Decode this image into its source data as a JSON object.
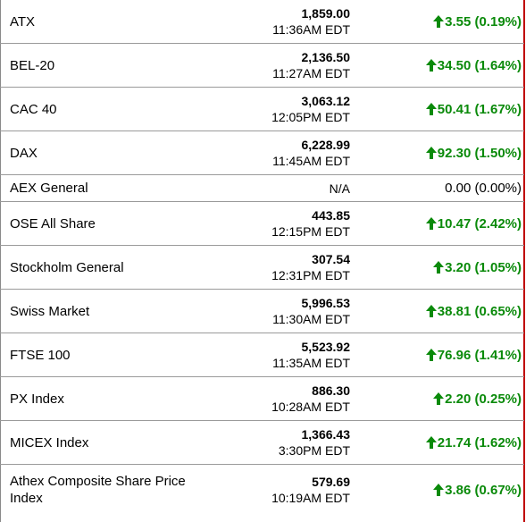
{
  "rows": [
    {
      "name": "ATX",
      "price": "1,859.00",
      "time": "11:36AM EDT",
      "change": "3.55 (0.19%)",
      "direction": "up"
    },
    {
      "name": "BEL-20",
      "price": "2,136.50",
      "time": "11:27AM EDT",
      "change": "34.50 (1.64%)",
      "direction": "up"
    },
    {
      "name": "CAC 40",
      "price": "3,063.12",
      "time": "12:05PM EDT",
      "change": "50.41 (1.67%)",
      "direction": "up"
    },
    {
      "name": "DAX",
      "price": "6,228.99",
      "time": "11:45AM EDT",
      "change": "92.30 (1.50%)",
      "direction": "up"
    },
    {
      "name": "AEX General",
      "price": "N/A",
      "time": "",
      "change": "0.00 (0.00%)",
      "direction": "flat"
    },
    {
      "name": "OSE All Share",
      "price": "443.85",
      "time": "12:15PM EDT",
      "change": "10.47 (2.42%)",
      "direction": "up"
    },
    {
      "name": "Stockholm General",
      "price": "307.54",
      "time": "12:31PM EDT",
      "change": "3.20 (1.05%)",
      "direction": "up"
    },
    {
      "name": "Swiss Market",
      "price": "5,996.53",
      "time": "11:30AM EDT",
      "change": "38.81 (0.65%)",
      "direction": "up"
    },
    {
      "name": "FTSE 100",
      "price": "5,523.92",
      "time": "11:35AM EDT",
      "change": "76.96 (1.41%)",
      "direction": "up"
    },
    {
      "name": "PX Index",
      "price": "886.30",
      "time": "10:28AM EDT",
      "change": "2.20 (0.25%)",
      "direction": "up"
    },
    {
      "name": "MICEX Index",
      "price": "1,366.43",
      "time": "3:30PM EDT",
      "change": "21.74 (1.62%)",
      "direction": "up"
    },
    {
      "name": "Athex Composite Share Price Index",
      "price": "579.69",
      "time": "10:19AM EDT",
      "change": "3.86 (0.67%)",
      "direction": "up"
    }
  ],
  "colors": {
    "up": "#0a8a0a",
    "flat": "#000000",
    "accent_border": "#c00000"
  },
  "icons": {
    "up": "arrow-up-icon"
  }
}
